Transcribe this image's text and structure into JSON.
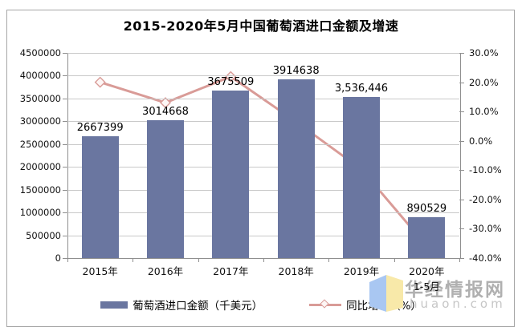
{
  "title": "2015-2020年5月中国葡萄酒进口金额及增速",
  "chart_data": {
    "type": "combo",
    "categories": [
      "2015年",
      "2016年",
      "2017年",
      "2018年",
      "2019年",
      "2020年"
    ],
    "category_sublabels": [
      "",
      "",
      "",
      "",
      "",
      "1-5月"
    ],
    "series": [
      {
        "name": "葡萄酒进口金额（千美元）",
        "type": "bar",
        "axis": "left",
        "values": [
          2667399,
          3014668,
          3675509,
          3914638,
          3536446,
          890529
        ],
        "value_labels": [
          "2667399",
          "3014668",
          "3675509",
          "3914638",
          "3,536,446",
          "890529"
        ],
        "color": "#6a76a0"
      },
      {
        "name": "同比增长（%）",
        "type": "line",
        "axis": "right",
        "values": [
          20.0,
          13.0,
          21.9,
          6.5,
          -9.7,
          -35.9
        ],
        "color": "#d99b97",
        "marker": "diamond",
        "marker_fill": "#fdf6f5"
      }
    ],
    "left_axis": {
      "min": 0,
      "max": 4500000,
      "step": 500000,
      "tick_labels_top_to_bottom": [
        "4500000",
        "4000000",
        "3500000",
        "3000000",
        "2500000",
        "2000000",
        "1500000",
        "1000000",
        "500000",
        "0"
      ]
    },
    "right_axis": {
      "min": -40,
      "max": 30,
      "step": 10,
      "tick_labels_top_to_bottom": [
        "30.0%",
        "20.0%",
        "10.0%",
        "0.0%",
        "-10.0%",
        "-20.0%",
        "-30.0%",
        "-40.0%"
      ]
    },
    "grid": true,
    "legend_position": "bottom"
  },
  "legend": {
    "bar_label": "葡萄酒进口金额（千美元）",
    "line_label": "同比增长（%）"
  },
  "watermark": {
    "name": "华经情报网",
    "domain": "huaon.com",
    "logo_left_color": "#a9c7f2",
    "logo_right_color": "#f8e9a9"
  },
  "colors": {
    "bar": "#6a76a0",
    "line": "#d99b97",
    "gridline": "#c9c9c9",
    "frame_border": "#a6a6a6",
    "plot_border": "#8f8f8f",
    "text": "#000000"
  }
}
